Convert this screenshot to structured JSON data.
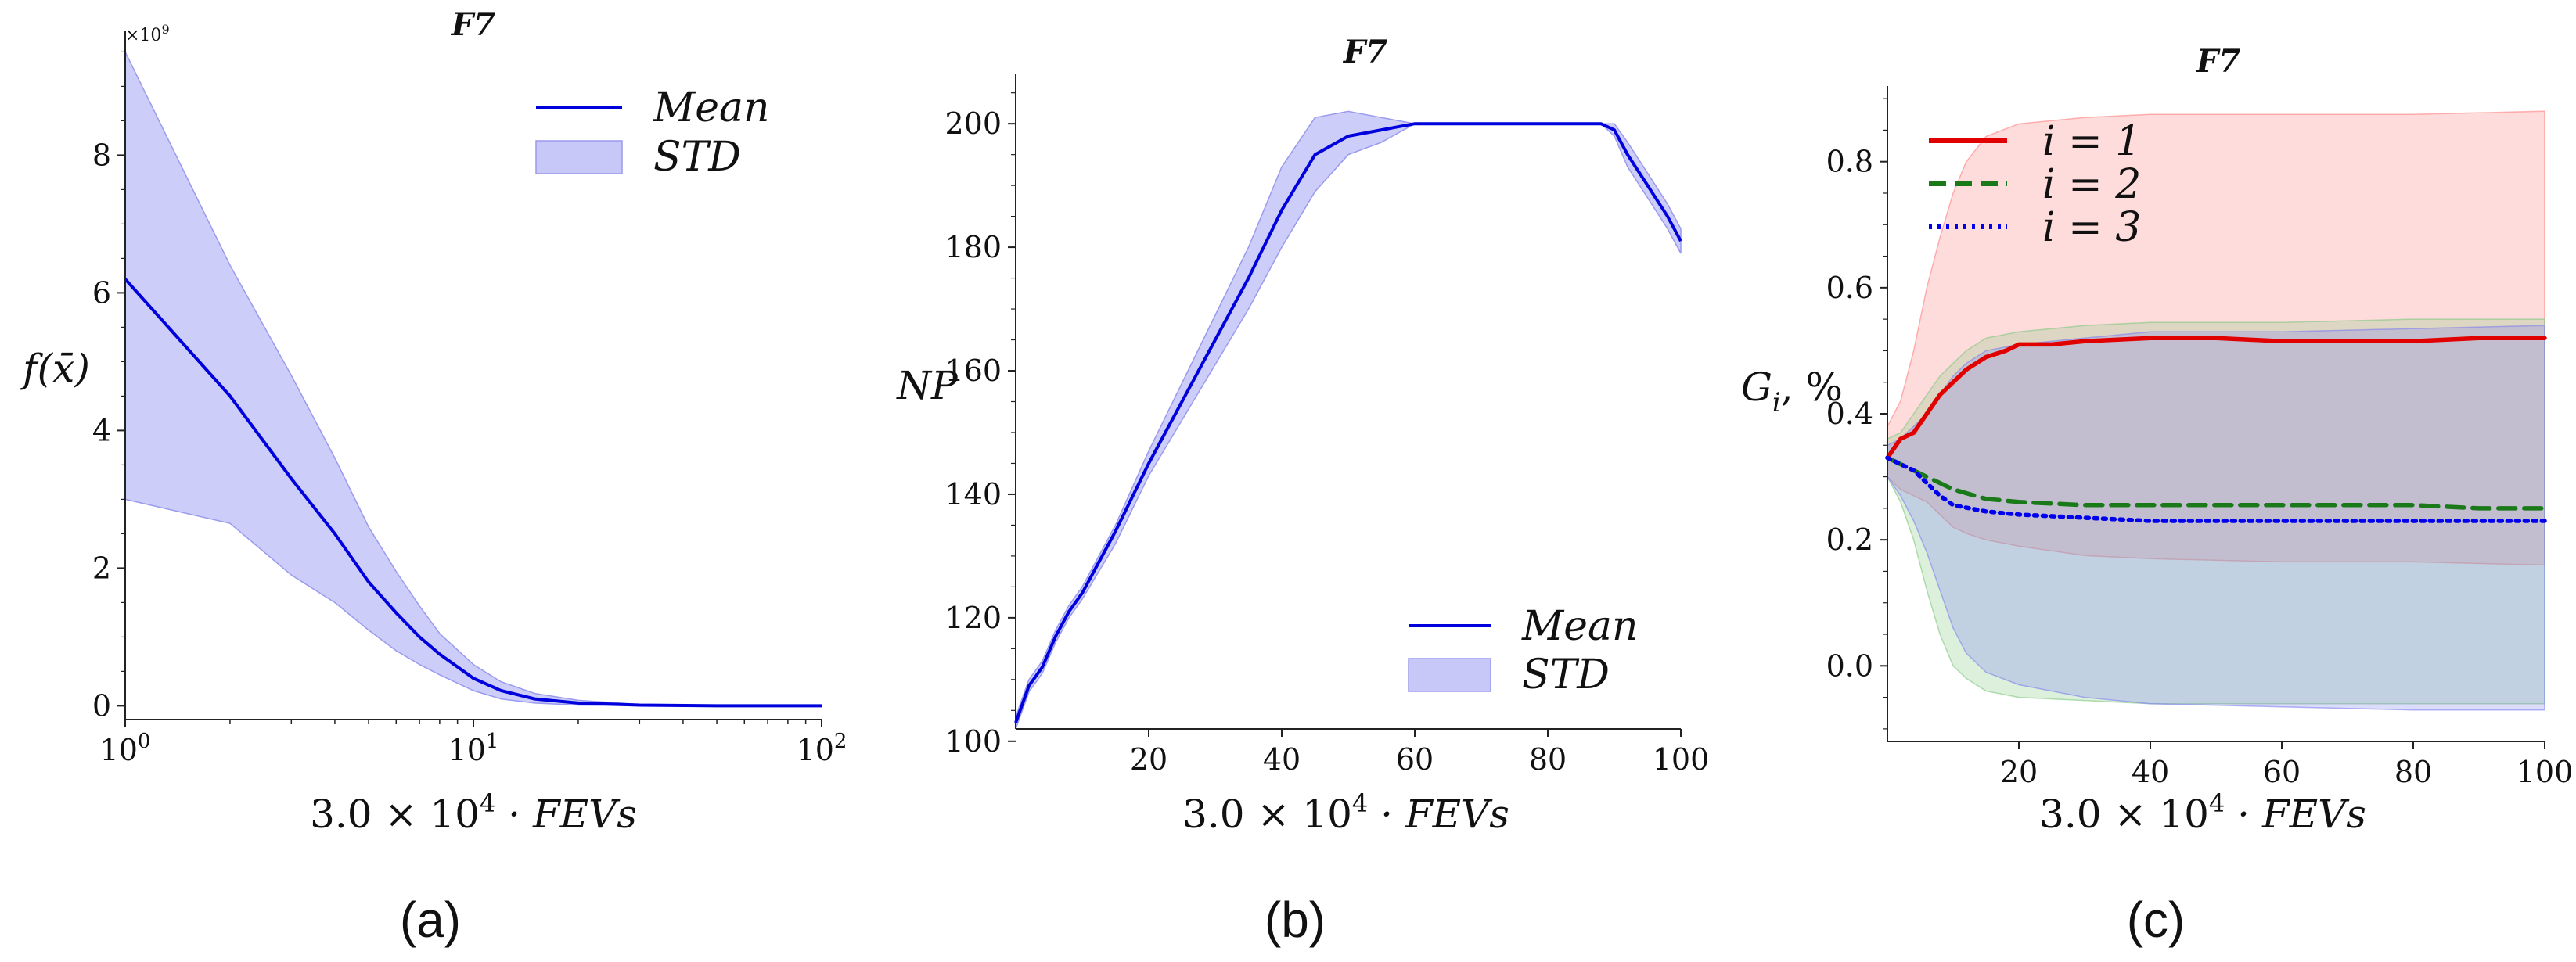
{
  "chart_data": [
    {
      "id": "a",
      "type": "line",
      "xscale": "log",
      "title": "F7",
      "xlabel_coef": "3.0 × 10",
      "xlabel_exp": "4",
      "xlabel_tail": " · FEVs",
      "ylabel": "f(x̄)",
      "y_multiplier": "×10",
      "y_multiplier_exp": "9",
      "panel_label": "(a)",
      "xlim": [
        1,
        100
      ],
      "ylim": [
        -0.2,
        9.8
      ],
      "x_ticks": [
        1,
        10,
        100
      ],
      "x_tick_labels": [
        {
          "base": "10",
          "exp": "0"
        },
        {
          "base": "10",
          "exp": "1"
        },
        {
          "base": "10",
          "exp": "2"
        }
      ],
      "y_ticks": [
        0,
        2,
        4,
        6,
        8
      ],
      "y_tick_labels": [
        "0",
        "2",
        "4",
        "6",
        "8"
      ],
      "legend": [
        "Mean",
        "STD"
      ],
      "legend_position": "top-right",
      "series": [
        {
          "name": "Mean",
          "color": "#0000dd",
          "x": [
            1,
            2,
            3,
            4,
            5,
            6,
            7,
            8,
            10,
            12,
            15,
            20,
            30,
            50,
            100
          ],
          "values": [
            6.2,
            4.5,
            3.3,
            2.5,
            1.8,
            1.35,
            1.0,
            0.75,
            0.4,
            0.22,
            0.1,
            0.04,
            0.01,
            0.0,
            0.0
          ]
        }
      ],
      "band": {
        "name": "STD",
        "color": "#c8c8f8",
        "x": [
          1,
          2,
          3,
          4,
          5,
          6,
          7,
          8,
          10,
          12,
          15,
          20,
          30,
          50,
          100
        ],
        "upper": [
          9.5,
          6.4,
          4.8,
          3.6,
          2.6,
          1.95,
          1.45,
          1.05,
          0.6,
          0.35,
          0.18,
          0.08,
          0.02,
          0.0,
          0.0
        ],
        "lower": [
          3.0,
          2.65,
          1.9,
          1.5,
          1.1,
          0.8,
          0.6,
          0.45,
          0.22,
          0.1,
          0.04,
          0.01,
          0.0,
          0.0,
          0.0
        ]
      }
    },
    {
      "id": "b",
      "type": "line",
      "xscale": "linear",
      "title": "F7",
      "xlabel_coef": "3.0 × 10",
      "xlabel_exp": "4",
      "xlabel_tail": " · FEVs",
      "ylabel": "NP",
      "panel_label": "(b)",
      "xlim": [
        0,
        100
      ],
      "ylim": [
        102,
        208
      ],
      "x_ticks": [
        20,
        40,
        60,
        80,
        100
      ],
      "x_tick_labels": [
        "20",
        "40",
        "60",
        "80",
        "100"
      ],
      "y_ticks": [
        100,
        120,
        140,
        160,
        180,
        200
      ],
      "y_tick_labels": [
        "100",
        "120",
        "140",
        "160",
        "180",
        "200"
      ],
      "legend": [
        "Mean",
        "STD"
      ],
      "legend_position": "bottom-right",
      "series": [
        {
          "name": "Mean",
          "color": "#0000dd",
          "x": [
            0,
            2,
            4,
            6,
            8,
            10,
            15,
            20,
            25,
            30,
            35,
            40,
            45,
            50,
            55,
            60,
            70,
            80,
            88,
            90,
            92,
            95,
            98,
            100
          ],
          "values": [
            103,
            109,
            112,
            117,
            121,
            124,
            134,
            145,
            155,
            165,
            175,
            186,
            195,
            198,
            199,
            200,
            200,
            200,
            200,
            199,
            195,
            190,
            185,
            181
          ]
        }
      ],
      "band": {
        "name": "STD",
        "color": "#c8c8f8",
        "x": [
          0,
          2,
          4,
          6,
          8,
          10,
          15,
          20,
          25,
          30,
          35,
          40,
          45,
          50,
          55,
          60,
          70,
          80,
          88,
          90,
          92,
          95,
          98,
          100
        ],
        "upper": [
          104,
          110,
          113,
          118,
          122,
          125,
          135,
          147,
          158,
          169,
          180,
          193,
          201,
          202,
          201,
          200,
          200,
          200,
          200,
          200,
          197,
          192,
          187,
          183
        ],
        "lower": [
          102,
          108,
          111,
          116,
          120,
          123,
          132,
          143,
          152,
          161,
          170,
          180,
          189,
          195,
          197,
          200,
          200,
          200,
          200,
          198,
          193,
          188,
          183,
          179
        ]
      }
    },
    {
      "id": "c",
      "type": "line",
      "xscale": "linear",
      "title": "F7",
      "xlabel_coef": "3.0 × 10",
      "xlabel_exp": "4",
      "xlabel_tail": " · FEVs",
      "ylabel_main": "G",
      "ylabel_sub": "i",
      "ylabel_tail": ", %",
      "panel_label": "(c)",
      "xlim": [
        0,
        100
      ],
      "ylim": [
        -0.12,
        0.92
      ],
      "x_ticks": [
        20,
        40,
        60,
        80,
        100
      ],
      "x_tick_labels": [
        "20",
        "40",
        "60",
        "80",
        "100"
      ],
      "y_ticks": [
        0.0,
        0.2,
        0.4,
        0.6,
        0.8
      ],
      "y_tick_labels": [
        "0.0",
        "0.2",
        "0.4",
        "0.6",
        "0.8"
      ],
      "legend": [
        "i = 1",
        "i = 2",
        "i = 3"
      ],
      "legend_position": "top-left",
      "series": [
        {
          "name": "i = 1",
          "color": "#e00000",
          "dash": "solid",
          "x": [
            0,
            2,
            4,
            6,
            8,
            10,
            12,
            15,
            18,
            20,
            25,
            30,
            40,
            50,
            60,
            70,
            80,
            90,
            100
          ],
          "values": [
            0.33,
            0.36,
            0.37,
            0.4,
            0.43,
            0.45,
            0.47,
            0.49,
            0.5,
            0.51,
            0.51,
            0.515,
            0.52,
            0.52,
            0.515,
            0.515,
            0.515,
            0.52,
            0.52
          ]
        },
        {
          "name": "i = 2",
          "color": "#1a7a1a",
          "dash": "dashed",
          "x": [
            0,
            2,
            4,
            6,
            8,
            10,
            15,
            20,
            30,
            40,
            50,
            60,
            70,
            80,
            90,
            100
          ],
          "values": [
            0.33,
            0.32,
            0.31,
            0.3,
            0.29,
            0.28,
            0.265,
            0.26,
            0.255,
            0.255,
            0.255,
            0.255,
            0.255,
            0.255,
            0.25,
            0.25
          ]
        },
        {
          "name": "i = 3",
          "color": "#0000ee",
          "dash": "dotted",
          "x": [
            0,
            2,
            4,
            6,
            8,
            10,
            15,
            20,
            30,
            40,
            50,
            60,
            70,
            80,
            90,
            100
          ],
          "values": [
            0.33,
            0.32,
            0.31,
            0.29,
            0.27,
            0.255,
            0.245,
            0.24,
            0.235,
            0.23,
            0.23,
            0.23,
            0.23,
            0.23,
            0.23,
            0.23
          ]
        }
      ],
      "bands": [
        {
          "name": "i = 1",
          "color": "#ff8080",
          "x": [
            0,
            2,
            4,
            6,
            8,
            10,
            12,
            15,
            20,
            30,
            40,
            60,
            80,
            100
          ],
          "upper": [
            0.38,
            0.42,
            0.5,
            0.6,
            0.68,
            0.75,
            0.8,
            0.84,
            0.86,
            0.87,
            0.875,
            0.875,
            0.875,
            0.88
          ],
          "lower": [
            0.3,
            0.28,
            0.27,
            0.26,
            0.24,
            0.22,
            0.21,
            0.2,
            0.19,
            0.175,
            0.17,
            0.165,
            0.165,
            0.16
          ]
        },
        {
          "name": "i = 2",
          "color": "#80c880",
          "x": [
            0,
            2,
            4,
            6,
            8,
            10,
            12,
            15,
            20,
            30,
            40,
            60,
            80,
            100
          ],
          "upper": [
            0.36,
            0.37,
            0.4,
            0.43,
            0.46,
            0.48,
            0.5,
            0.52,
            0.53,
            0.54,
            0.545,
            0.545,
            0.55,
            0.55
          ],
          "lower": [
            0.3,
            0.26,
            0.2,
            0.12,
            0.05,
            0.0,
            -0.02,
            -0.04,
            -0.05,
            -0.055,
            -0.06,
            -0.06,
            -0.06,
            -0.06
          ]
        },
        {
          "name": "i = 3",
          "color": "#8080f0",
          "x": [
            0,
            2,
            4,
            6,
            8,
            10,
            12,
            15,
            20,
            30,
            40,
            60,
            80,
            100
          ],
          "upper": [
            0.35,
            0.36,
            0.38,
            0.4,
            0.43,
            0.46,
            0.48,
            0.5,
            0.51,
            0.52,
            0.53,
            0.53,
            0.535,
            0.54
          ],
          "lower": [
            0.3,
            0.27,
            0.23,
            0.18,
            0.12,
            0.06,
            0.02,
            -0.01,
            -0.03,
            -0.05,
            -0.06,
            -0.065,
            -0.07,
            -0.07
          ]
        }
      ]
    }
  ]
}
